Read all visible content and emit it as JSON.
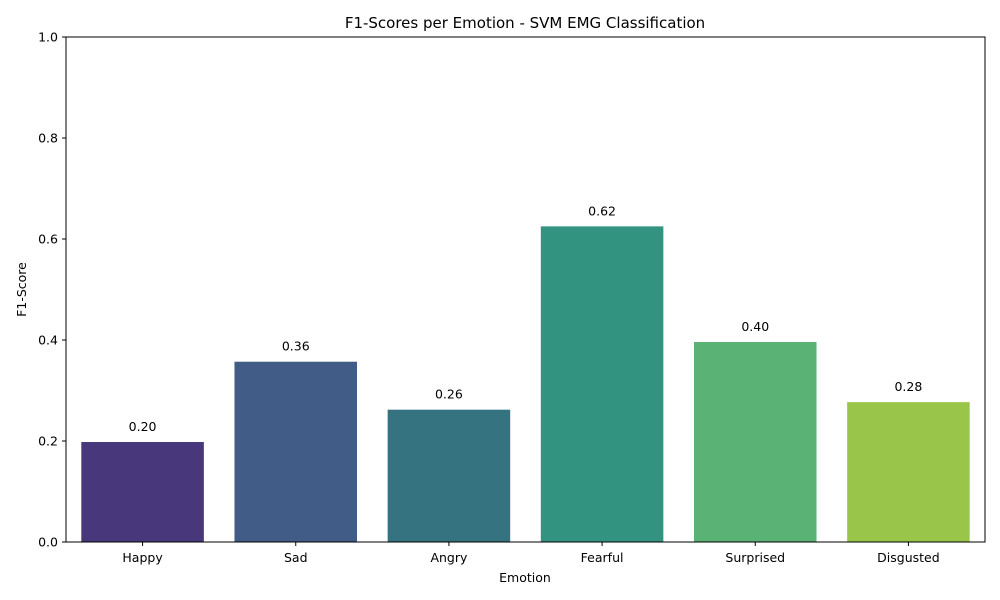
{
  "chart_data": {
    "type": "bar",
    "title": "F1-Scores per Emotion - SVM EMG Classification",
    "xlabel": "Emotion",
    "ylabel": "F1-Score",
    "ylim": [
      0,
      1.0
    ],
    "yticks": [
      0.0,
      0.2,
      0.4,
      0.6,
      0.8,
      1.0
    ],
    "ytick_labels": [
      "0.0",
      "0.2",
      "0.4",
      "0.6",
      "0.8",
      "1.0"
    ],
    "categories": [
      "Happy",
      "Sad",
      "Angry",
      "Fearful",
      "Surprised",
      "Disgusted"
    ],
    "values": [
      0.198,
      0.357,
      0.262,
      0.625,
      0.396,
      0.277
    ],
    "value_labels": [
      "0.20",
      "0.36",
      "0.26",
      "0.62",
      "0.40",
      "0.28"
    ],
    "colors": [
      "#48377a",
      "#415c86",
      "#34737f",
      "#319380",
      "#5ab374",
      "#99c54b"
    ],
    "grid": false,
    "legend": "none"
  }
}
